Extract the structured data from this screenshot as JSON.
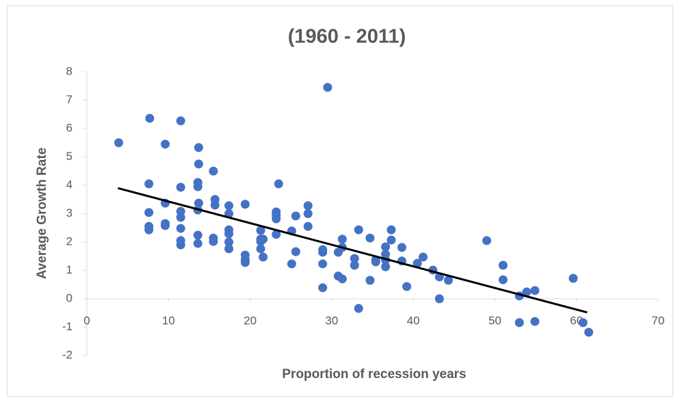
{
  "chart_data": {
    "type": "scatter",
    "title": "(1960 - 2011)",
    "xlabel": "Proportion of recession years",
    "ylabel": "Average Growth Rate",
    "x": [
      3.9,
      7.7,
      7.6,
      7.6,
      7.6,
      7.6,
      9.6,
      9.6,
      9.6,
      9.6,
      11.5,
      11.5,
      11.5,
      11.5,
      11.5,
      11.5,
      11.5,
      13.7,
      13.7,
      13.6,
      13.6,
      13.7,
      13.6,
      13.6,
      13.6,
      15.5,
      15.7,
      15.7,
      15.5,
      15.5,
      17.4,
      17.4,
      17.4,
      17.4,
      17.4,
      17.4,
      19.4,
      19.4,
      19.4,
      19.4,
      21.3,
      21.3,
      21.3,
      21.3,
      21.6,
      21.6,
      23.2,
      23.2,
      23.2,
      23.2,
      23.5,
      25.1,
      25.1,
      25.6,
      25.6,
      27.1,
      27.1,
      27.1,
      29.5,
      28.9,
      28.9,
      28.9,
      28.9,
      30.8,
      31.3,
      31.3,
      30.8,
      31.3,
      32.8,
      32.8,
      33.3,
      33.3,
      34.7,
      34.7,
      35.4,
      35.4,
      36.6,
      36.6,
      36.6,
      36.6,
      37.3,
      37.3,
      38.6,
      38.6,
      39.2,
      40.5,
      41.2,
      42.4,
      43.2,
      43.2,
      44.3,
      49.0,
      51.0,
      51.0,
      53.0,
      53.0,
      53.9,
      54.9,
      54.9,
      59.6,
      60.8,
      61.5
    ],
    "y": [
      5.5,
      6.36,
      4.05,
      3.04,
      2.55,
      2.43,
      5.45,
      3.37,
      2.65,
      2.58,
      6.27,
      3.93,
      3.08,
      2.87,
      2.48,
      2.05,
      1.9,
      5.33,
      4.75,
      4.1,
      3.95,
      3.37,
      3.13,
      2.24,
      1.95,
      4.5,
      3.5,
      3.3,
      2.14,
      2.02,
      3.28,
      3.0,
      2.43,
      2.29,
      2.0,
      1.76,
      3.33,
      1.54,
      1.37,
      1.28,
      2.41,
      2.1,
      2.02,
      1.76,
      1.47,
      2.1,
      3.06,
      2.94,
      2.82,
      2.27,
      4.05,
      2.39,
      1.23,
      2.92,
      1.66,
      3.28,
      3.0,
      2.55,
      7.45,
      1.73,
      1.64,
      1.23,
      0.39,
      1.64,
      2.1,
      1.81,
      0.8,
      0.7,
      1.42,
      1.18,
      2.43,
      -0.34,
      2.14,
      0.65,
      1.37,
      1.3,
      1.83,
      1.57,
      1.37,
      1.13,
      2.43,
      2.07,
      1.81,
      1.33,
      0.43,
      1.25,
      1.47,
      1.01,
      0.77,
      0.0,
      0.65,
      2.05,
      1.18,
      0.67,
      0.1,
      -0.84,
      0.24,
      0.29,
      -0.8,
      0.72,
      -0.84,
      -1.18
    ],
    "color": "#4472c4",
    "trendline": {
      "x": [
        3.8,
        61.3
      ],
      "y": [
        3.9,
        -0.48
      ],
      "color": "#000000"
    },
    "xlim": [
      0,
      70
    ],
    "ylim": [
      -2,
      8
    ],
    "xticks": [
      0,
      10,
      20,
      30,
      40,
      50,
      60,
      70
    ],
    "yticks": [
      -2,
      -1,
      0,
      1,
      2,
      3,
      4,
      5,
      6,
      7,
      8
    ]
  }
}
